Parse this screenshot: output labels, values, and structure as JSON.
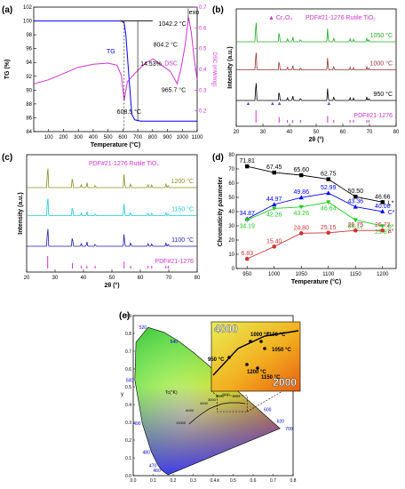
{
  "panel_labels": [
    "(a)",
    "(b)",
    "(c)",
    "(d)",
    "(e)"
  ],
  "colors": {
    "tg": "#0000ff",
    "dsc": "#cc33cc",
    "pdf": "#cc33cc",
    "c1200": "#8b8b1e",
    "c1150": "#1ec8d8",
    "c1100": "#1a1ab0",
    "c1050": "#22aa22",
    "c1000": "#993333",
    "c950": "#000000",
    "ls": "#000000",
    "cs": "#0000ff",
    "bs": "#22cc22",
    "as": "#cc3333"
  },
  "chart_data": [
    {
      "panel": "(a)",
      "type": "line",
      "xlabel": "Temperature (°C)",
      "ylabel": "TG (%)",
      "y2label": "DSC (mW/mg)",
      "xlim": [
        0,
        1100
      ],
      "ylim": [
        84,
        102
      ],
      "y2lim": [
        0.1,
        0.7
      ],
      "xticks": [
        100,
        200,
        300,
        400,
        500,
        600,
        700,
        800,
        900,
        1000,
        1100
      ],
      "yticks": [
        84,
        86,
        88,
        90,
        92,
        94,
        96,
        98,
        100,
        102
      ],
      "y2ticks": [
        0.2,
        0.3,
        0.4,
        0.5,
        0.6,
        0.7
      ],
      "series": [
        {
          "name": "TG",
          "axis": "left",
          "points": [
            [
              0,
              100
            ],
            [
              590,
              100
            ],
            [
              608.5,
              99.7
            ],
            [
              620,
              98
            ],
            [
              640,
              92
            ],
            [
              660,
              86.5
            ],
            [
              680,
              85.7
            ],
            [
              720,
              85.5
            ],
            [
              1100,
              85.5
            ]
          ]
        },
        {
          "name": "DSC",
          "axis": "right",
          "points": [
            [
              0,
              0.33
            ],
            [
              100,
              0.35
            ],
            [
              200,
              0.38
            ],
            [
              300,
              0.41
            ],
            [
              400,
              0.425
            ],
            [
              500,
              0.43
            ],
            [
              560,
              0.42
            ],
            [
              590,
              0.37
            ],
            [
              608.5,
              0.25
            ],
            [
              630,
              0.34
            ],
            [
              680,
              0.38
            ],
            [
              750,
              0.43
            ],
            [
              804.2,
              0.45
            ],
            [
              860,
              0.42
            ],
            [
              920,
              0.39
            ],
            [
              965.7,
              0.33
            ],
            [
              990,
              0.4
            ],
            [
              1020,
              0.52
            ],
            [
              1042.2,
              0.65
            ],
            [
              1060,
              0.58
            ],
            [
              1080,
              0.45
            ],
            [
              1100,
              0.35
            ]
          ]
        }
      ],
      "annotations": [
        "14.53%",
        "608.5 °C",
        "804.2 °C",
        "965.7 °C",
        "1042.2 °C",
        "exo",
        "TG",
        "DSC"
      ]
    },
    {
      "panel": "(b)",
      "type": "xrd",
      "xlabel": "2θ (°)",
      "ylabel": "Intensity (a.u.)",
      "xlim": [
        20,
        80
      ],
      "xticks": [
        20,
        30,
        40,
        50,
        60,
        70,
        80
      ],
      "legend": [
        "Cr₂O₃",
        "PDF#21-1276  Rutile TiO₂"
      ],
      "series": [
        {
          "name": "1050 °C"
        },
        {
          "name": "1000 °C"
        },
        {
          "name": "950 °C"
        },
        {
          "name": "PDF#21-1276"
        }
      ],
      "peaks": [
        27.4,
        36.1,
        39.2,
        41.2,
        44.1,
        54.3,
        56.6,
        62.7,
        64.0,
        69.0,
        69.8
      ],
      "cr2o3_peaks": [
        24.5,
        33.6,
        36.2,
        54.8
      ]
    },
    {
      "panel": "(c)",
      "type": "xrd",
      "xlabel": "2θ (°)",
      "ylabel": "Intensity (a.u.)",
      "xlim": [
        20,
        80
      ],
      "xticks": [
        20,
        30,
        40,
        50,
        60,
        70,
        80
      ],
      "legend": [
        "PDF#21-1276  Rutile TiO₂"
      ],
      "series": [
        {
          "name": "1200 °C"
        },
        {
          "name": "1150 °C"
        },
        {
          "name": "1100 °C"
        },
        {
          "name": "PDF#21-1276"
        }
      ]
    },
    {
      "panel": "(d)",
      "type": "line",
      "xlabel": "Temperature (°C)",
      "ylabel": "Chromaticity parameter",
      "xlim": [
        930,
        1225
      ],
      "ylim": [
        0,
        80
      ],
      "xticks": [
        950,
        1000,
        1050,
        1100,
        1150,
        1200
      ],
      "yticks": [
        0,
        10,
        20,
        30,
        40,
        50,
        60,
        70,
        80
      ],
      "categories": [
        950,
        1000,
        1050,
        1100,
        1150,
        1200
      ],
      "series": [
        {
          "name": "L*",
          "values": [
            71.81,
            67.45,
            65.6,
            62.75,
            50.5,
            46.66
          ]
        },
        {
          "name": "C*",
          "values": [
            34.87,
            44.97,
            49.86,
            52.99,
            43.36,
            40.08
          ]
        },
        {
          "name": "b*",
          "values": [
            34.19,
            42.26,
            43.26,
            46.64,
            34.12,
            29.87
          ]
        },
        {
          "name": "a*",
          "values": [
            6.83,
            15.4,
            24.8,
            25.15,
            26.75,
            26.72
          ]
        }
      ]
    },
    {
      "panel": "(e)",
      "type": "scatter",
      "xlabel": "x",
      "ylabel": "y",
      "xlim": [
        0,
        0.8
      ],
      "ylim": [
        0,
        0.9
      ],
      "xticks": [
        0.0,
        0.1,
        0.2,
        0.3,
        0.4,
        0.5,
        0.6,
        0.7,
        0.8
      ],
      "yticks": [
        0.0,
        0.1,
        0.2,
        0.3,
        0.4,
        0.5,
        0.6,
        0.7,
        0.8,
        0.9
      ],
      "wavelength_labels": [
        "460",
        "470",
        "480",
        "490",
        "500",
        "520",
        "540",
        "560",
        "580",
        "600",
        "620",
        "700"
      ],
      "cct_label": "Tc(°K)",
      "cct_ticks": [
        "10000",
        "6000",
        "4000",
        "3000",
        "2500",
        "2000",
        "1500"
      ],
      "inset": {
        "top": "4000",
        "bottom": "2000",
        "points": [
          "950 °C",
          "1000 °C",
          "1100 °C",
          "1050 °C",
          "1200 °C",
          "1150 °C"
        ]
      }
    }
  ]
}
